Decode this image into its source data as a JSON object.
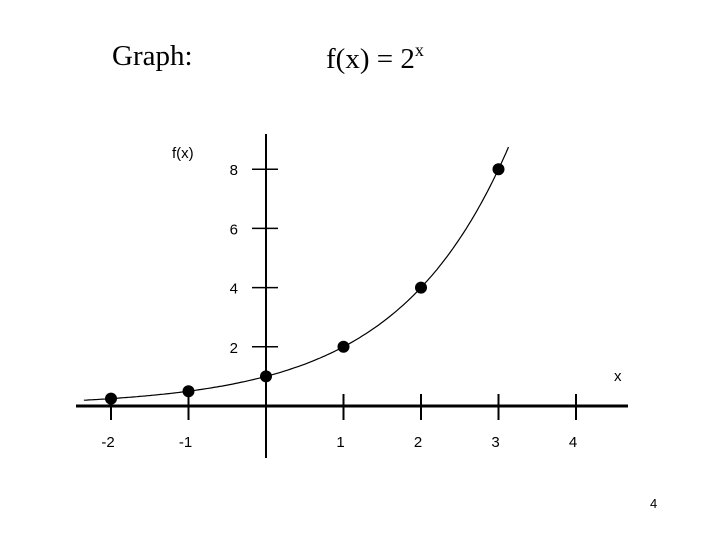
{
  "slide": {
    "label": "Graph:",
    "function_text": "f(x) = 2",
    "exponent": "x",
    "page_number": "4"
  },
  "chart_data": {
    "type": "scatter",
    "xlabel": "x",
    "ylabel": "f(x)",
    "x_ticks": [
      "-2",
      "-1",
      "1",
      "2",
      "3",
      "4"
    ],
    "y_ticks": [
      "2",
      "4",
      "6",
      "8"
    ],
    "xlim": [
      -2.4,
      4.6
    ],
    "ylim": [
      0,
      8.6
    ],
    "points": [
      {
        "x": -2,
        "y": 0.25
      },
      {
        "x": -1,
        "y": 0.5
      },
      {
        "x": 0,
        "y": 1
      },
      {
        "x": 1,
        "y": 2
      },
      {
        "x": 2,
        "y": 4
      },
      {
        "x": 3,
        "y": 8
      }
    ],
    "curve": "2^x",
    "colors": {
      "line": "#000000",
      "points": "#000000"
    }
  }
}
